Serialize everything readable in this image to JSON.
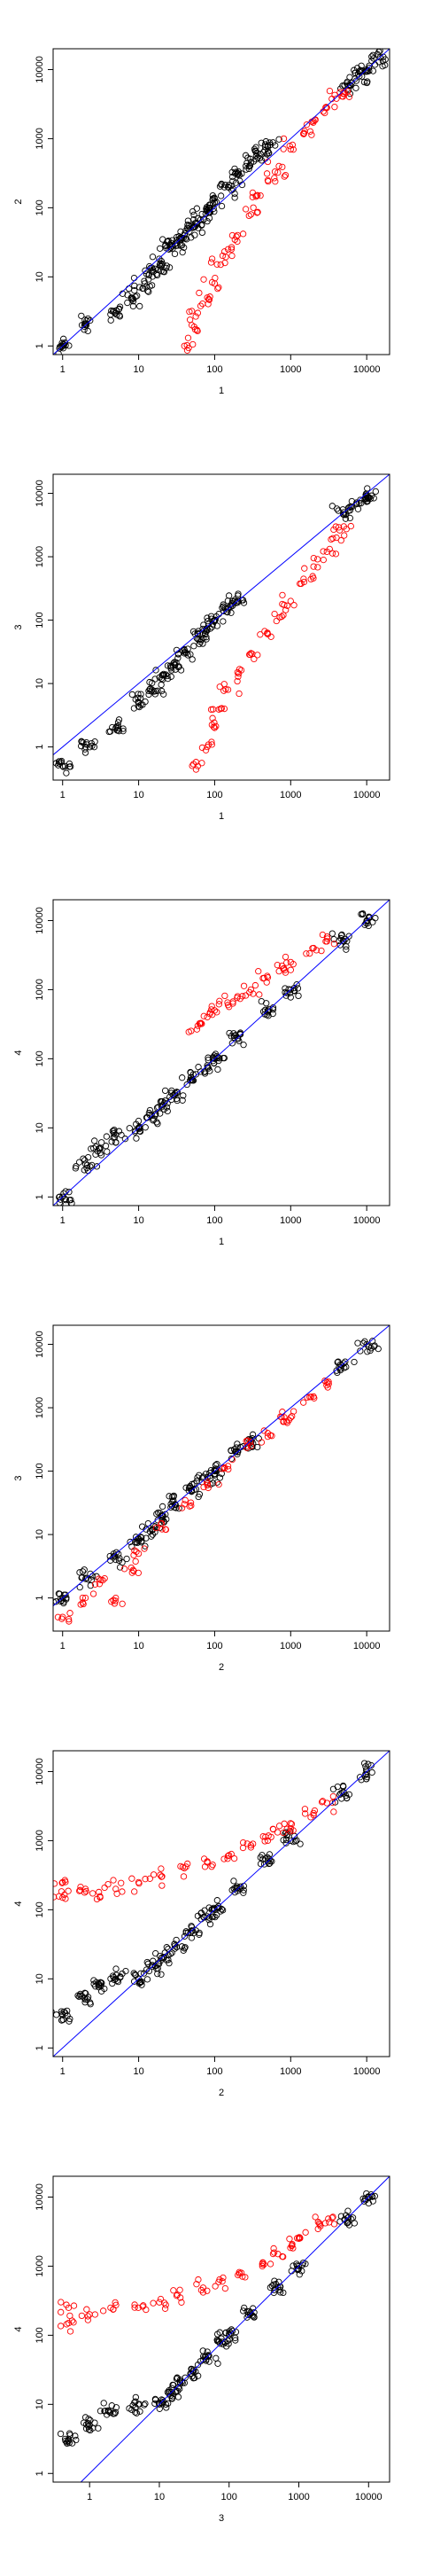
{
  "colors": {
    "points_default": "#000000",
    "points_highlight": "#ff0000",
    "diagonal": "#0000ff"
  },
  "chart_data": [
    {
      "type": "scatter",
      "xlabel": "1",
      "ylabel": "2",
      "log_x": true,
      "log_y": true,
      "xlim": [
        0.75,
        20000
      ],
      "ylim": [
        0.75,
        20000
      ],
      "x_ticks": [
        "1",
        "10",
        "100",
        "1000",
        "10000"
      ],
      "y_ticks": [
        "1",
        "10",
        "100",
        "1000",
        "10000"
      ],
      "reference_line": "y = x",
      "series": [
        {
          "color": "#000000",
          "approx_points": [
            [
              1,
              1
            ],
            [
              2,
              2
            ],
            [
              5,
              3
            ],
            [
              8,
              5
            ],
            [
              12,
              8
            ],
            [
              15,
              12
            ],
            [
              20,
              15
            ],
            [
              25,
              25
            ],
            [
              30,
              30
            ],
            [
              40,
              40
            ],
            [
              50,
              55
            ],
            [
              60,
              70
            ],
            [
              80,
              90
            ],
            [
              100,
              120
            ],
            [
              150,
              200
            ],
            [
              200,
              300
            ],
            [
              300,
              450
            ],
            [
              400,
              600
            ],
            [
              500,
              800
            ],
            [
              6000,
              6000
            ],
            [
              8000,
              8000
            ],
            [
              10000,
              10000
            ],
            [
              15000,
              15000
            ]
          ]
        },
        {
          "color": "#ff0000",
          "approx_points": [
            [
              40,
              1
            ],
            [
              50,
              2
            ],
            [
              60,
              3
            ],
            [
              80,
              5
            ],
            [
              100,
              8
            ],
            [
              120,
              15
            ],
            [
              150,
              25
            ],
            [
              200,
              40
            ],
            [
              300,
              80
            ],
            [
              400,
              150
            ],
            [
              500,
              250
            ],
            [
              700,
              400
            ],
            [
              1000,
              700
            ],
            [
              1500,
              1200
            ],
            [
              2000,
              1800
            ],
            [
              3000,
              2800
            ],
            [
              4000,
              3800
            ],
            [
              5000,
              4500
            ]
          ]
        }
      ]
    },
    {
      "type": "scatter",
      "xlabel": "1",
      "ylabel": "3",
      "log_x": true,
      "log_y": true,
      "xlim": [
        0.75,
        20000
      ],
      "ylim": [
        0.3,
        20000
      ],
      "x_ticks": [
        "1",
        "10",
        "100",
        "1000",
        "10000"
      ],
      "y_ticks": [
        "1",
        "10",
        "100",
        "1000",
        "10000"
      ],
      "reference_line": "y = x",
      "series": [
        {
          "color": "#000000",
          "approx_points": [
            [
              1,
              0.5
            ],
            [
              2,
              1
            ],
            [
              5,
              2
            ],
            [
              10,
              5
            ],
            [
              15,
              8
            ],
            [
              20,
              12
            ],
            [
              30,
              20
            ],
            [
              40,
              30
            ],
            [
              60,
              50
            ],
            [
              80,
              70
            ],
            [
              100,
              100
            ],
            [
              150,
              150
            ],
            [
              200,
              200
            ],
            [
              5000,
              5000
            ],
            [
              8000,
              7000
            ],
            [
              10000,
              9000
            ]
          ]
        },
        {
          "color": "#ff0000",
          "approx_points": [
            [
              60,
              0.5
            ],
            [
              80,
              1
            ],
            [
              100,
              2
            ],
            [
              120,
              4
            ],
            [
              150,
              8
            ],
            [
              200,
              15
            ],
            [
              300,
              30
            ],
            [
              500,
              60
            ],
            [
              800,
              120
            ],
            [
              1000,
              200
            ],
            [
              1500,
              400
            ],
            [
              2000,
              700
            ],
            [
              3000,
              1200
            ],
            [
              4000,
              2000
            ],
            [
              5000,
              3000
            ]
          ]
        }
      ]
    },
    {
      "type": "scatter",
      "xlabel": "1",
      "ylabel": "4",
      "log_x": true,
      "log_y": true,
      "xlim": [
        0.75,
        20000
      ],
      "ylim": [
        0.75,
        20000
      ],
      "x_ticks": [
        "1",
        "10",
        "100",
        "1000",
        "10000"
      ],
      "y_ticks": [
        "1",
        "10",
        "100",
        "1000",
        "10000"
      ],
      "reference_line": "y = x",
      "series": [
        {
          "color": "#000000",
          "approx_points": [
            [
              1,
              1
            ],
            [
              2,
              3
            ],
            [
              3,
              5
            ],
            [
              5,
              8
            ],
            [
              10,
              10
            ],
            [
              15,
              15
            ],
            [
              20,
              20
            ],
            [
              30,
              30
            ],
            [
              50,
              50
            ],
            [
              80,
              80
            ],
            [
              100,
              100
            ],
            [
              200,
              200
            ],
            [
              500,
              500
            ],
            [
              1000,
              1000
            ],
            [
              5000,
              5000
            ],
            [
              10000,
              10000
            ]
          ]
        },
        {
          "color": "#ff0000",
          "approx_points": [
            [
              60,
              300
            ],
            [
              80,
              400
            ],
            [
              100,
              500
            ],
            [
              150,
              600
            ],
            [
              200,
              800
            ],
            [
              300,
              1000
            ],
            [
              500,
              1500
            ],
            [
              800,
              2000
            ],
            [
              1000,
              2500
            ],
            [
              2000,
              4000
            ],
            [
              3000,
              5000
            ]
          ]
        }
      ]
    },
    {
      "type": "scatter",
      "xlabel": "2",
      "ylabel": "3",
      "log_x": true,
      "log_y": true,
      "xlim": [
        0.75,
        20000
      ],
      "ylim": [
        0.3,
        20000
      ],
      "x_ticks": [
        "1",
        "10",
        "100",
        "1000",
        "10000"
      ],
      "y_ticks": [
        "1",
        "10",
        "100",
        "1000",
        "10000"
      ],
      "reference_line": "y = x",
      "series": [
        {
          "color": "#000000",
          "approx_points": [
            [
              1,
              1
            ],
            [
              2,
              2
            ],
            [
              5,
              4
            ],
            [
              10,
              8
            ],
            [
              15,
              12
            ],
            [
              20,
              20
            ],
            [
              30,
              30
            ],
            [
              50,
              50
            ],
            [
              80,
              80
            ],
            [
              100,
              100
            ],
            [
              200,
              200
            ],
            [
              300,
              300
            ],
            [
              5000,
              5000
            ],
            [
              10000,
              10000
            ]
          ]
        },
        {
          "color": "#ff0000",
          "approx_points": [
            [
              1,
              0.5
            ],
            [
              2,
              1
            ],
            [
              3,
              2
            ],
            [
              5,
              1
            ],
            [
              8,
              3
            ],
            [
              10,
              5
            ],
            [
              20,
              15
            ],
            [
              40,
              30
            ],
            [
              80,
              60
            ],
            [
              150,
              120
            ],
            [
              300,
              250
            ],
            [
              500,
              350
            ],
            [
              800,
              600
            ],
            [
              1000,
              700
            ],
            [
              2000,
              1500
            ],
            [
              3000,
              2500
            ]
          ]
        }
      ]
    },
    {
      "type": "scatter",
      "xlabel": "2",
      "ylabel": "4",
      "log_x": true,
      "log_y": true,
      "xlim": [
        0.75,
        20000
      ],
      "ylim": [
        0.75,
        20000
      ],
      "x_ticks": [
        "1",
        "10",
        "100",
        "1000",
        "10000"
      ],
      "y_ticks": [
        "1",
        "10",
        "100",
        "1000",
        "10000"
      ],
      "reference_line": "y = x",
      "series": [
        {
          "color": "#000000",
          "approx_points": [
            [
              1,
              3
            ],
            [
              2,
              5
            ],
            [
              3,
              8
            ],
            [
              5,
              10
            ],
            [
              10,
              10
            ],
            [
              15,
              15
            ],
            [
              20,
              20
            ],
            [
              30,
              30
            ],
            [
              50,
              50
            ],
            [
              80,
              80
            ],
            [
              100,
              100
            ],
            [
              200,
              200
            ],
            [
              500,
              500
            ],
            [
              1000,
              1000
            ],
            [
              5000,
              5000
            ],
            [
              10000,
              10000
            ]
          ]
        },
        {
          "color": "#ff0000",
          "approx_points": [
            [
              1,
              150
            ],
            [
              1,
              250
            ],
            [
              2,
              200
            ],
            [
              3,
              180
            ],
            [
              5,
              200
            ],
            [
              10,
              250
            ],
            [
              20,
              300
            ],
            [
              40,
              400
            ],
            [
              80,
              500
            ],
            [
              150,
              600
            ],
            [
              300,
              800
            ],
            [
              500,
              1000
            ],
            [
              800,
              1300
            ],
            [
              1000,
              1500
            ],
            [
              2000,
              2500
            ],
            [
              3000,
              3500
            ]
          ]
        }
      ]
    },
    {
      "type": "scatter",
      "xlabel": "3",
      "ylabel": "4",
      "log_x": true,
      "log_y": true,
      "xlim": [
        0.3,
        20000
      ],
      "ylim": [
        0.75,
        20000
      ],
      "x_ticks": [
        "1",
        "10",
        "100",
        "1000",
        "10000"
      ],
      "y_ticks": [
        "1",
        "10",
        "100",
        "1000",
        "10000"
      ],
      "reference_line": "y = x",
      "series": [
        {
          "color": "#000000",
          "approx_points": [
            [
              0.5,
              3
            ],
            [
              1,
              5
            ],
            [
              2,
              8
            ],
            [
              5,
              10
            ],
            [
              10,
              10
            ],
            [
              15,
              15
            ],
            [
              20,
              20
            ],
            [
              30,
              30
            ],
            [
              50,
              50
            ],
            [
              80,
              80
            ],
            [
              100,
              100
            ],
            [
              200,
              200
            ],
            [
              500,
              500
            ],
            [
              1000,
              1000
            ],
            [
              5000,
              5000
            ],
            [
              10000,
              10000
            ]
          ]
        },
        {
          "color": "#ff0000",
          "approx_points": [
            [
              0.5,
              150
            ],
            [
              0.5,
              250
            ],
            [
              1,
              200
            ],
            [
              2,
              250
            ],
            [
              5,
              250
            ],
            [
              10,
              300
            ],
            [
              20,
              350
            ],
            [
              40,
              450
            ],
            [
              80,
              600
            ],
            [
              150,
              800
            ],
            [
              300,
              1000
            ],
            [
              500,
              1500
            ],
            [
              800,
              2000
            ],
            [
              1000,
              2500
            ],
            [
              2000,
              4000
            ],
            [
              3000,
              5000
            ]
          ]
        }
      ]
    }
  ]
}
